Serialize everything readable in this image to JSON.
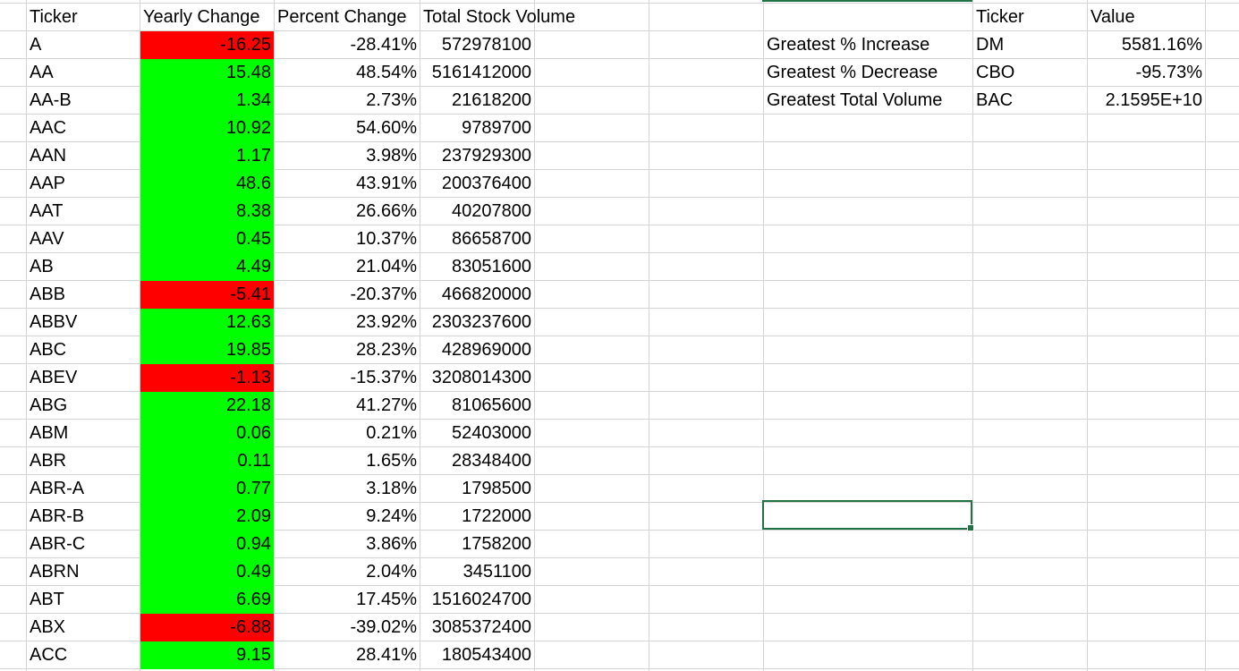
{
  "colors": {
    "positive_fill": "#00ff00",
    "negative_fill": "#ff0000",
    "gridline": "#d4d4d4",
    "selection": "#217346"
  },
  "headers": {
    "ticker": "Ticker",
    "yearly_change": "Yearly Change",
    "percent_change": "Percent Change",
    "total_volume": "Total Stock Volume"
  },
  "rows": [
    {
      "ticker": "A",
      "yearly_change": "-16.25",
      "percent_change": "-28.41%",
      "volume": "572978100",
      "status": "negative"
    },
    {
      "ticker": "AA",
      "yearly_change": "15.48",
      "percent_change": "48.54%",
      "volume": "5161412000",
      "status": "positive"
    },
    {
      "ticker": "AA-B",
      "yearly_change": "1.34",
      "percent_change": "2.73%",
      "volume": "21618200",
      "status": "positive"
    },
    {
      "ticker": "AAC",
      "yearly_change": "10.92",
      "percent_change": "54.60%",
      "volume": "9789700",
      "status": "positive"
    },
    {
      "ticker": "AAN",
      "yearly_change": "1.17",
      "percent_change": "3.98%",
      "volume": "237929300",
      "status": "positive"
    },
    {
      "ticker": "AAP",
      "yearly_change": "48.6",
      "percent_change": "43.91%",
      "volume": "200376400",
      "status": "positive"
    },
    {
      "ticker": "AAT",
      "yearly_change": "8.38",
      "percent_change": "26.66%",
      "volume": "40207800",
      "status": "positive"
    },
    {
      "ticker": "AAV",
      "yearly_change": "0.45",
      "percent_change": "10.37%",
      "volume": "86658700",
      "status": "positive"
    },
    {
      "ticker": "AB",
      "yearly_change": "4.49",
      "percent_change": "21.04%",
      "volume": "83051600",
      "status": "positive"
    },
    {
      "ticker": "ABB",
      "yearly_change": "-5.41",
      "percent_change": "-20.37%",
      "volume": "466820000",
      "status": "negative"
    },
    {
      "ticker": "ABBV",
      "yearly_change": "12.63",
      "percent_change": "23.92%",
      "volume": "2303237600",
      "status": "positive"
    },
    {
      "ticker": "ABC",
      "yearly_change": "19.85",
      "percent_change": "28.23%",
      "volume": "428969000",
      "status": "positive"
    },
    {
      "ticker": "ABEV",
      "yearly_change": "-1.13",
      "percent_change": "-15.37%",
      "volume": "3208014300",
      "status": "negative"
    },
    {
      "ticker": "ABG",
      "yearly_change": "22.18",
      "percent_change": "41.27%",
      "volume": "81065600",
      "status": "positive"
    },
    {
      "ticker": "ABM",
      "yearly_change": "0.06",
      "percent_change": "0.21%",
      "volume": "52403000",
      "status": "positive"
    },
    {
      "ticker": "ABR",
      "yearly_change": "0.11",
      "percent_change": "1.65%",
      "volume": "28348400",
      "status": "positive"
    },
    {
      "ticker": "ABR-A",
      "yearly_change": "0.77",
      "percent_change": "3.18%",
      "volume": "1798500",
      "status": "positive"
    },
    {
      "ticker": "ABR-B",
      "yearly_change": "2.09",
      "percent_change": "9.24%",
      "volume": "1722000",
      "status": "positive"
    },
    {
      "ticker": "ABR-C",
      "yearly_change": "0.94",
      "percent_change": "3.86%",
      "volume": "1758200",
      "status": "positive"
    },
    {
      "ticker": "ABRN",
      "yearly_change": "0.49",
      "percent_change": "2.04%",
      "volume": "3451100",
      "status": "positive"
    },
    {
      "ticker": "ABT",
      "yearly_change": "6.69",
      "percent_change": "17.45%",
      "volume": "1516024700",
      "status": "positive"
    },
    {
      "ticker": "ABX",
      "yearly_change": "-6.88",
      "percent_change": "-39.02%",
      "volume": "3085372400",
      "status": "negative"
    },
    {
      "ticker": "ACC",
      "yearly_change": "9.15",
      "percent_change": "28.41%",
      "volume": "180543400",
      "status": "positive"
    }
  ],
  "summary": {
    "headers": {
      "ticker": "Ticker",
      "value": "Value"
    },
    "rows": [
      {
        "label": "Greatest % Increase",
        "ticker": "DM",
        "value": "5581.16%"
      },
      {
        "label": "Greatest % Decrease",
        "ticker": "CBO",
        "value": "-95.73%"
      },
      {
        "label": "Greatest Total Volume",
        "ticker": "BAC",
        "value": "2.1595E+10"
      }
    ]
  }
}
